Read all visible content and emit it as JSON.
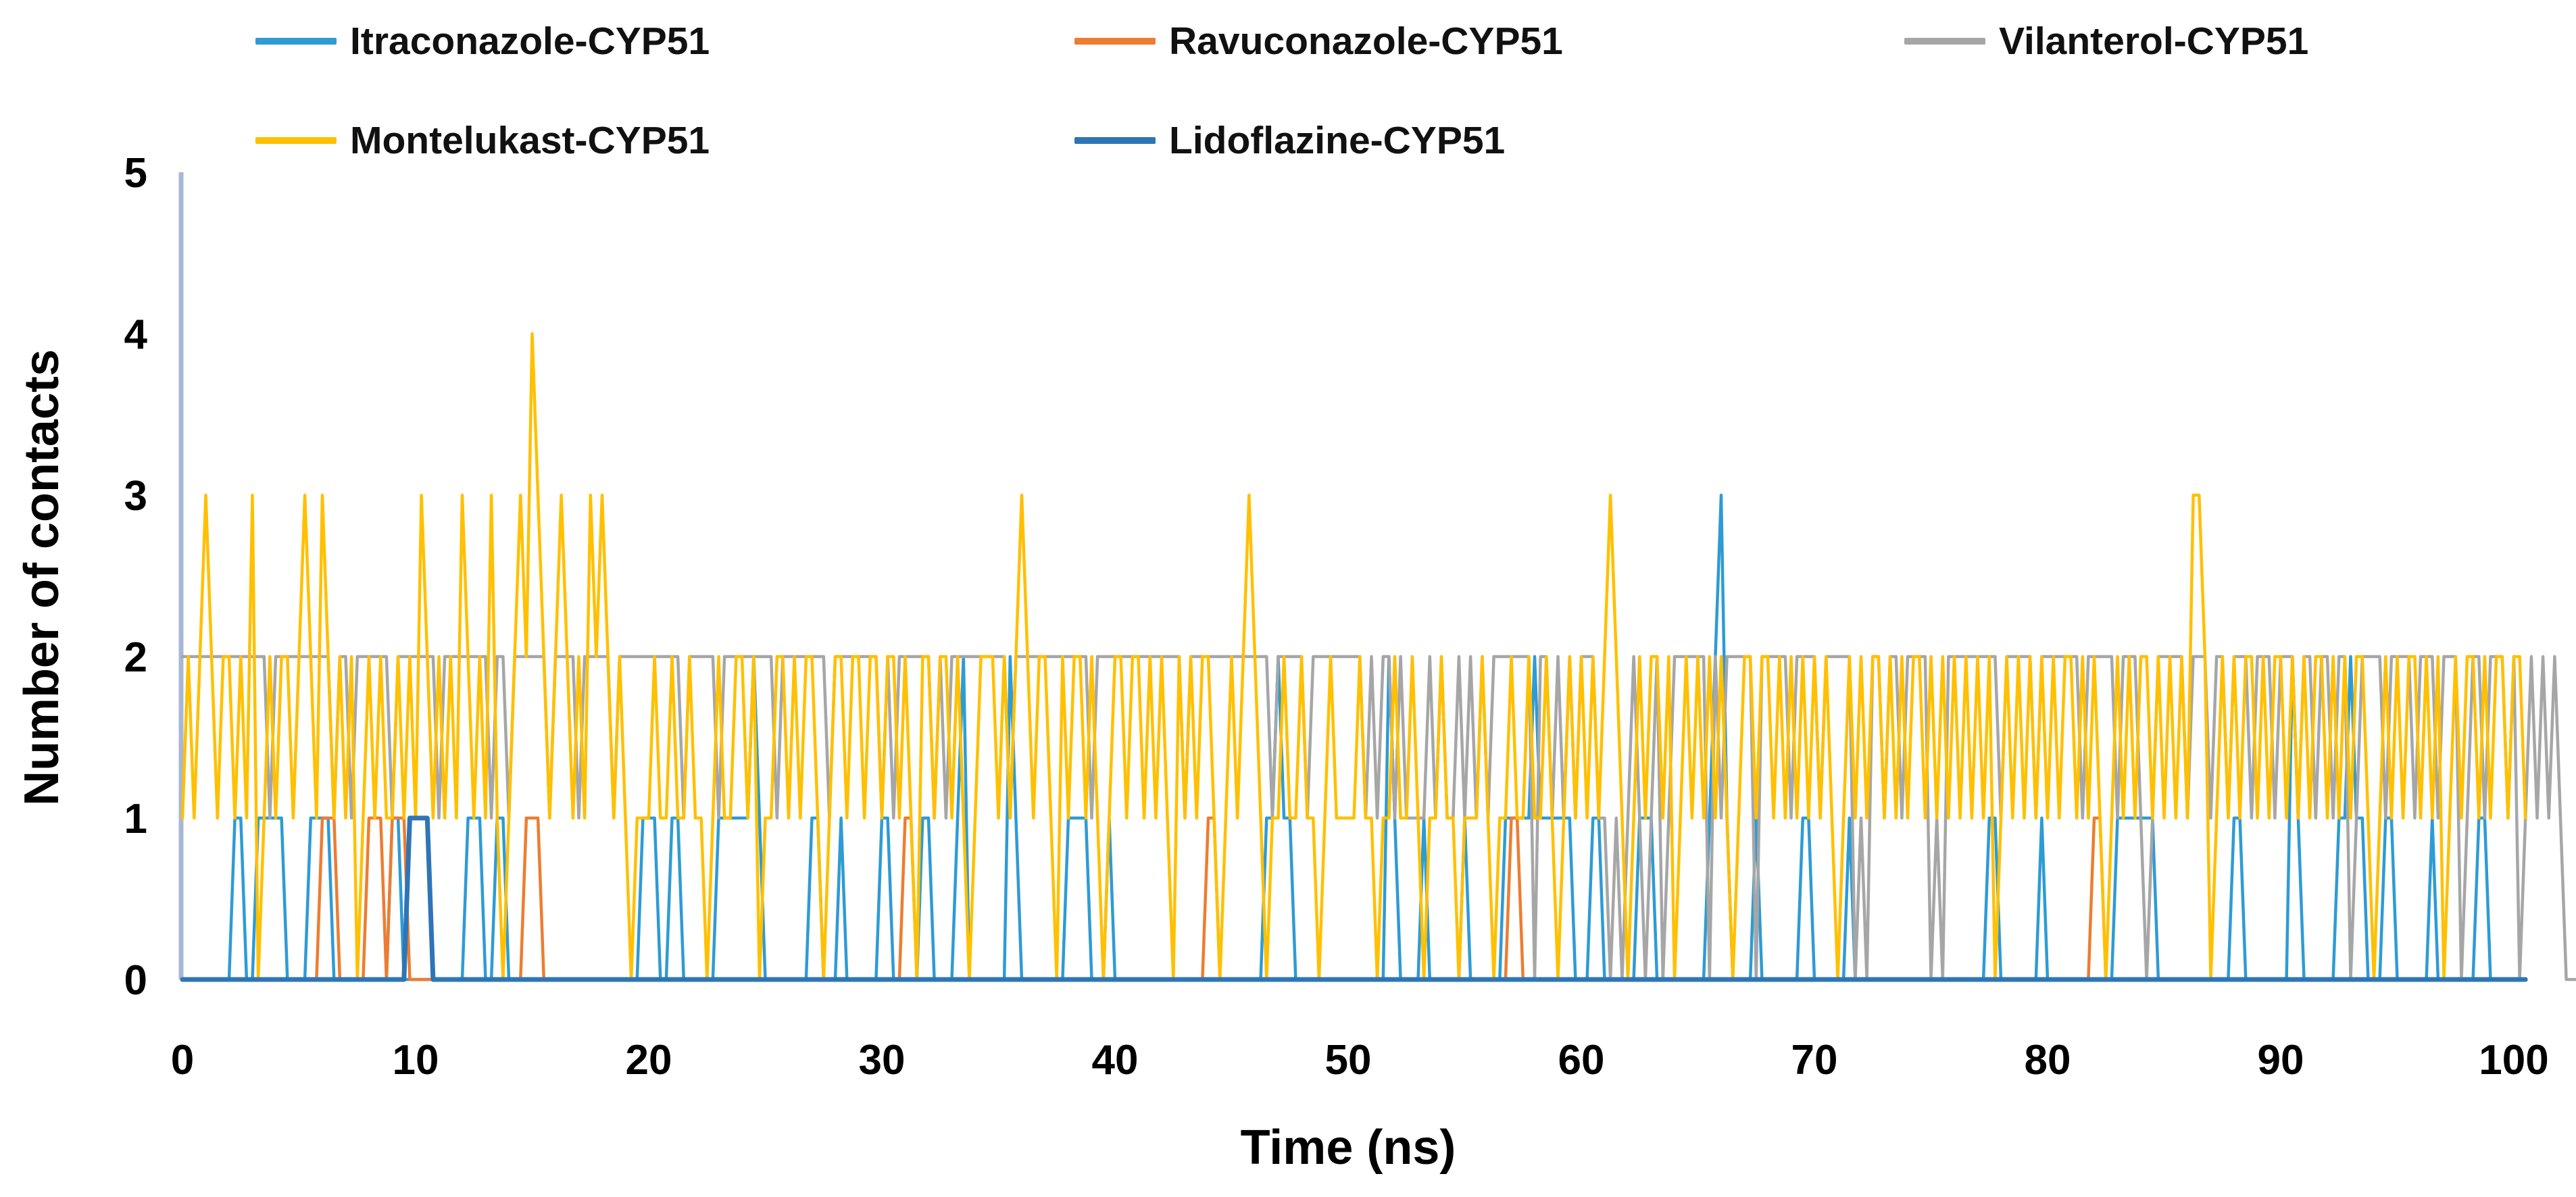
{
  "chart_data": {
    "type": "line",
    "title": "",
    "xlabel": "Time (ns)",
    "ylabel": "Number of contacts",
    "xlim": [
      0,
      100
    ],
    "ylim": [
      0,
      5
    ],
    "x_ticks": [
      0,
      10,
      20,
      30,
      40,
      50,
      60,
      70,
      80,
      90,
      100
    ],
    "y_ticks": [
      0,
      1,
      2,
      3,
      4,
      5
    ],
    "grid": false,
    "legend_position": "top",
    "x_start": 0,
    "x_step": 0.25,
    "axis_line_color": "#A8B7D4",
    "tick_label_color": "#000000",
    "series": [
      {
        "name": "Itraconazole-CYP51",
        "color": "#2E9BD5",
        "values": "0000000001100111110000111100000000001100000000000111001100000000000000000000000111001100000011111121000000001100010000001100000110000120000000210000000011110001000000000000000000000000001121100000000000000002100001000000100000011111211111100011000000111000000000123100001000000011000000100000000000000000000000110000000100000000000011111110000000000000110000000021000000112110001100000010000000110000000"
      },
      {
        "name": "Ravuconazole-CYP51",
        "color": "#ED7D31",
        "values": "0000000000000000000000001110000011101110000000000000000000011100000000000000000000000000000000000000000000000000000000000000110000000000000000000000000000000000000000000000000011000000000000000000000000000000000000000000000000001100000000000000000000000000000000000000000000000000000000000000000000000000000000000000000000000000110000000000000000000000000000000000000000000000000000000000000000000000000"
      },
      {
        "name": "Vilanterol-CYP51",
        "color": "#A6A6A6",
        "values": "2222222222222221222222222212212222221222222212222222212212222221222212222212222222222212222212222222221222222221222222221212222221212222222222122222222222221222222222222222122222222222222122222122222222212122121111212112121212222222022121212221101012101201222222021222220222221222212222201022122122220102222222221222221222222212222212221012222212221221222122212221221221220122221222212221222012212221201212121000"
      },
      {
        "name": "Montelukast-CYP51",
        "color": "#FFC000",
        "values": "1212321221213012122123213212120121211212132121213212131012324321232121323212101112112112110121122120112212122101221221221221210221221210122212123212210212212101221221212102121221012123210112112110121111211011211210112110111210112112112101212121232101212212012121212101221221212121212101212122121212212121212121201212121212122121210121212212121213320121212212122121212212121221012121221212012122121221221"
      },
      {
        "name": "Lidoflazine-CYP51",
        "color": "#2E75B6",
        "values": "0000000000000000000000000000000000000001111000000000000000000000000000000000000000000000000000000000000000000000000000000000000000000000000000000000000000000000000000000000000000000000000000000000000000000000000000000000000000000000000000000000000000000000000000000000000000000000000000000000000000000000000000000000000000000000000000000000000000000000000000000000000000000000000000000000000000000000000"
      }
    ]
  },
  "legend": {
    "row1_items": [
      "Itraconazole-CYP51",
      "Ravuconazole-CYP51",
      "Vilanterol-CYP51"
    ],
    "row2_items": [
      "Montelukast-CYP51",
      "Lidoflazine-CYP51"
    ]
  }
}
